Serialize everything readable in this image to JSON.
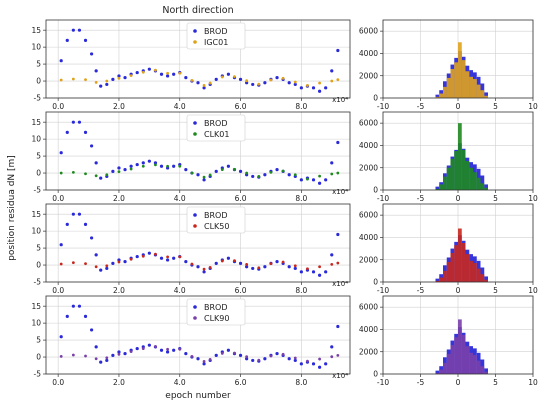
{
  "figure": {
    "title": "North direction",
    "ylabel": "position residua dN [m]",
    "xlabel": "epoch number",
    "x_exponent_label": "x10⁴"
  },
  "chart_data": [
    {
      "type": "scatter",
      "panel": "timeseries-1",
      "xlim": [
        -4000,
        96000
      ],
      "ylim": [
        -5,
        18
      ],
      "xticks": [
        0,
        20000,
        40000,
        60000,
        80000
      ],
      "xtick_labels": [
        "0.0",
        "2.0",
        "4.0",
        "6.0",
        "8.0"
      ],
      "yticks": [
        -5,
        0,
        5,
        10,
        15
      ],
      "grid": true,
      "legend": "top-center",
      "series": [
        {
          "name": "BROD",
          "color": "#2a2ad8",
          "x": [
            1000,
            3000,
            5000,
            7000,
            9000,
            11000,
            12500,
            14000,
            16000,
            18000,
            20000,
            22000,
            24000,
            26000,
            28000,
            30000,
            32000,
            34000,
            36000,
            38000,
            40000,
            42000,
            44000,
            46000,
            48000,
            50000,
            52000,
            54000,
            56000,
            58000,
            60000,
            62000,
            64000,
            66000,
            68000,
            70000,
            72000,
            74000,
            76000,
            78000,
            80000,
            82000,
            84000,
            86000,
            88000,
            90000,
            92000
          ],
          "y": [
            6,
            12,
            15,
            15,
            12,
            8,
            3,
            -1.5,
            -1,
            0.5,
            1.5,
            1,
            2,
            2.5,
            3,
            3.5,
            3,
            2,
            1.5,
            2,
            2.5,
            1,
            0,
            -0.5,
            -2,
            -1,
            0.5,
            1.5,
            2,
            1,
            0.5,
            -0.5,
            -1,
            -1.2,
            -0.5,
            0.5,
            1,
            0.5,
            -0.5,
            -1,
            -2,
            -1.5,
            -2,
            -3,
            -2,
            3,
            9
          ]
        },
        {
          "name": "IGC01",
          "color": "#e0a21c",
          "x": [
            1000,
            5000,
            9000,
            12500,
            16000,
            20000,
            24000,
            28000,
            32000,
            36000,
            40000,
            44000,
            48000,
            50000,
            54000,
            58000,
            62000,
            66000,
            70000,
            74000,
            78000,
            82000,
            86000,
            90000,
            92000
          ],
          "y": [
            0.3,
            0.6,
            0.4,
            -0.4,
            0,
            0.8,
            1.6,
            2.6,
            3.2,
            2.3,
            2.3,
            0.2,
            -1.3,
            -0.6,
            1.2,
            1.3,
            0.1,
            -0.9,
            0.3,
            0.8,
            -0.3,
            -1.3,
            -0.6,
            0,
            0.4
          ]
        }
      ]
    },
    {
      "type": "scatter",
      "panel": "timeseries-2",
      "xlim": [
        -4000,
        96000
      ],
      "ylim": [
        -5,
        18
      ],
      "xticks": [
        0,
        20000,
        40000,
        60000,
        80000
      ],
      "xtick_labels": [
        "0.0",
        "2.0",
        "4.0",
        "6.0",
        "8.0"
      ],
      "yticks": [
        -5,
        0,
        5,
        10,
        15
      ],
      "grid": true,
      "legend": "top-center",
      "series": [
        {
          "name": "BROD",
          "color": "#2a2ad8",
          "x": [
            1000,
            3000,
            5000,
            7000,
            9000,
            11000,
            12500,
            14000,
            16000,
            18000,
            20000,
            22000,
            24000,
            26000,
            28000,
            30000,
            32000,
            34000,
            36000,
            38000,
            40000,
            42000,
            44000,
            46000,
            48000,
            50000,
            52000,
            54000,
            56000,
            58000,
            60000,
            62000,
            64000,
            66000,
            68000,
            70000,
            72000,
            74000,
            76000,
            78000,
            80000,
            82000,
            84000,
            86000,
            88000,
            90000,
            92000
          ],
          "y": [
            6,
            12,
            15,
            15,
            12,
            8,
            3,
            -1.5,
            -1,
            0.5,
            1.5,
            1,
            2,
            2.5,
            3,
            3.5,
            3,
            2,
            1.5,
            2,
            2.5,
            1,
            0,
            -0.5,
            -2,
            -1,
            0.5,
            1.5,
            2,
            1,
            0.5,
            -0.5,
            -1,
            -1.2,
            -0.5,
            0.5,
            1,
            0.5,
            -0.5,
            -1,
            -2,
            -1.5,
            -2,
            -3,
            -2,
            3,
            9
          ]
        },
        {
          "name": "CLK01",
          "color": "#1f8a1f",
          "x": [
            1000,
            5000,
            9000,
            12500,
            16000,
            20000,
            24000,
            28000,
            32000,
            36000,
            40000,
            44000,
            48000,
            50000,
            54000,
            58000,
            62000,
            66000,
            70000,
            74000,
            78000,
            82000,
            86000,
            90000,
            92000
          ],
          "y": [
            0,
            0.2,
            -0.2,
            -0.8,
            -0.5,
            0.4,
            1.2,
            2,
            2.4,
            2,
            2,
            0,
            -1.2,
            -0.6,
            1,
            1.1,
            0,
            -1,
            0.2,
            0.6,
            -0.5,
            -1.8,
            -0.9,
            -0.3,
            0
          ]
        }
      ]
    },
    {
      "type": "scatter",
      "panel": "timeseries-3",
      "xlim": [
        -4000,
        96000
      ],
      "ylim": [
        -5,
        18
      ],
      "xticks": [
        0,
        20000,
        40000,
        60000,
        80000
      ],
      "xtick_labels": [
        "0.0",
        "2.0",
        "4.0",
        "6.0",
        "8.0"
      ],
      "yticks": [
        -5,
        0,
        5,
        10,
        15
      ],
      "grid": true,
      "legend": "top-center",
      "series": [
        {
          "name": "BROD",
          "color": "#2a2ad8",
          "x": [
            1000,
            3000,
            5000,
            7000,
            9000,
            11000,
            12500,
            14000,
            16000,
            18000,
            20000,
            22000,
            24000,
            26000,
            28000,
            30000,
            32000,
            34000,
            36000,
            38000,
            40000,
            42000,
            44000,
            46000,
            48000,
            50000,
            52000,
            54000,
            56000,
            58000,
            60000,
            62000,
            64000,
            66000,
            68000,
            70000,
            72000,
            74000,
            76000,
            78000,
            80000,
            82000,
            84000,
            86000,
            88000,
            90000,
            92000
          ],
          "y": [
            6,
            12,
            15,
            15,
            12,
            8,
            3,
            -1.5,
            -1,
            0.5,
            1.5,
            1,
            2,
            2.5,
            3,
            3.5,
            3,
            2,
            1.5,
            2,
            2.5,
            1,
            0,
            -0.5,
            -2,
            -1,
            0.5,
            1.5,
            2,
            1,
            0.5,
            -0.5,
            -1,
            -1.2,
            -0.5,
            0.5,
            1,
            0.5,
            -0.5,
            -1,
            -2,
            -1.5,
            -2,
            -3,
            -2,
            3,
            9
          ]
        },
        {
          "name": "CLK50",
          "color": "#c8281e",
          "x": [
            1000,
            5000,
            9000,
            12500,
            16000,
            20000,
            24000,
            28000,
            32000,
            36000,
            40000,
            44000,
            48000,
            50000,
            54000,
            58000,
            62000,
            66000,
            70000,
            74000,
            78000,
            82000,
            86000,
            90000,
            92000
          ],
          "y": [
            0.3,
            0.7,
            0.4,
            -0.5,
            -0.2,
            0.9,
            1.7,
            2.6,
            3.2,
            2.4,
            2.4,
            0.3,
            -1.2,
            -0.7,
            1.2,
            1.3,
            0.2,
            -0.8,
            0.4,
            0.9,
            -0.2,
            -1.1,
            -0.5,
            0.2,
            0.6
          ]
        }
      ]
    },
    {
      "type": "scatter",
      "panel": "timeseries-4",
      "xlim": [
        -4000,
        96000
      ],
      "ylim": [
        -5,
        18
      ],
      "xticks": [
        0,
        20000,
        40000,
        60000,
        80000
      ],
      "xtick_labels": [
        "0.0",
        "2.0",
        "4.0",
        "6.0",
        "8.0"
      ],
      "yticks": [
        -5,
        0,
        5,
        10,
        15
      ],
      "grid": true,
      "legend": "top-center",
      "series": [
        {
          "name": "BROD",
          "color": "#2a2ad8",
          "x": [
            1000,
            3000,
            5000,
            7000,
            9000,
            11000,
            12500,
            14000,
            16000,
            18000,
            20000,
            22000,
            24000,
            26000,
            28000,
            30000,
            32000,
            34000,
            36000,
            38000,
            40000,
            42000,
            44000,
            46000,
            48000,
            50000,
            52000,
            54000,
            56000,
            58000,
            60000,
            62000,
            64000,
            66000,
            68000,
            70000,
            72000,
            74000,
            76000,
            78000,
            80000,
            82000,
            84000,
            86000,
            88000,
            90000,
            92000
          ],
          "y": [
            6,
            12,
            15,
            15,
            12,
            8,
            3,
            -1.5,
            -1,
            0.5,
            1.5,
            1,
            2,
            2.5,
            3,
            3.5,
            3,
            2,
            1.5,
            2,
            2.5,
            1,
            0,
            -0.5,
            -2,
            -1,
            0.5,
            1.5,
            2,
            1,
            0.5,
            -0.5,
            -1,
            -1.2,
            -0.5,
            0.5,
            1,
            0.5,
            -0.5,
            -1,
            -2,
            -1.5,
            -2,
            -3,
            -2,
            3,
            9
          ]
        },
        {
          "name": "CLK90",
          "color": "#7a3fa8",
          "x": [
            1000,
            5000,
            9000,
            12500,
            16000,
            20000,
            24000,
            28000,
            32000,
            36000,
            40000,
            44000,
            48000,
            50000,
            54000,
            58000,
            62000,
            66000,
            70000,
            74000,
            78000,
            82000,
            86000,
            90000,
            92000
          ],
          "y": [
            0.2,
            0.6,
            0.3,
            -0.5,
            -0.2,
            0.8,
            1.6,
            2.5,
            3.1,
            2.3,
            2.3,
            0.2,
            -1.3,
            -0.7,
            1.1,
            1.2,
            0.1,
            -0.9,
            0.3,
            0.8,
            -0.3,
            -1.2,
            -0.6,
            0.1,
            0.5
          ]
        }
      ]
    },
    {
      "type": "bar",
      "panel": "histogram-1",
      "xlim": [
        -10,
        10
      ],
      "ylim": [
        0,
        7000
      ],
      "xticks": [
        -10,
        -5,
        0,
        5,
        10
      ],
      "yticks": [
        0,
        2000,
        4000,
        6000
      ],
      "grid": true,
      "bin_centers": [
        -2.75,
        -2.25,
        -1.75,
        -1.25,
        -0.75,
        -0.25,
        0.25,
        0.75,
        1.25,
        1.75,
        2.25,
        2.75,
        3.25,
        3.75
      ],
      "series": [
        {
          "name": "BROD",
          "color": "#2a2ad8",
          "values": [
            300,
            700,
            1500,
            2200,
            3000,
            3600,
            4200,
            3700,
            2900,
            2500,
            2300,
            1900,
            1300,
            500
          ]
        },
        {
          "name": "IGC01",
          "color": "#e0a21c",
          "values": [
            100,
            400,
            1000,
            1800,
            2600,
            3200,
            5000,
            3400,
            2400,
            1900,
            1700,
            1200,
            700,
            200
          ]
        }
      ]
    },
    {
      "type": "bar",
      "panel": "histogram-2",
      "xlim": [
        -10,
        10
      ],
      "ylim": [
        0,
        7000
      ],
      "xticks": [
        -10,
        -5,
        0,
        5,
        10
      ],
      "yticks": [
        0,
        2000,
        4000,
        6000
      ],
      "grid": true,
      "bin_centers": [
        -2.75,
        -2.25,
        -1.75,
        -1.25,
        -0.75,
        -0.25,
        0.25,
        0.75,
        1.25,
        1.75,
        2.25,
        2.75,
        3.25,
        3.75
      ],
      "series": [
        {
          "name": "BROD",
          "color": "#2a2ad8",
          "values": [
            300,
            700,
            1500,
            2200,
            3000,
            3600,
            4200,
            3700,
            2900,
            2500,
            2300,
            1900,
            1300,
            500
          ]
        },
        {
          "name": "CLK01",
          "color": "#1f8a1f",
          "values": [
            100,
            500,
            1200,
            2000,
            2800,
            3500,
            6000,
            3600,
            2600,
            2000,
            1600,
            1100,
            600,
            200
          ]
        }
      ]
    },
    {
      "type": "bar",
      "panel": "histogram-3",
      "xlim": [
        -10,
        10
      ],
      "ylim": [
        0,
        7000
      ],
      "xticks": [
        -10,
        -5,
        0,
        5,
        10
      ],
      "yticks": [
        0,
        2000,
        4000,
        6000
      ],
      "grid": true,
      "bin_centers": [
        -2.75,
        -2.25,
        -1.75,
        -1.25,
        -0.75,
        -0.25,
        0.25,
        0.75,
        1.25,
        1.75,
        2.25,
        2.75,
        3.25,
        3.75
      ],
      "series": [
        {
          "name": "BROD",
          "color": "#2a2ad8",
          "values": [
            300,
            700,
            1500,
            2200,
            3000,
            3600,
            4200,
            3700,
            2900,
            2500,
            2300,
            1900,
            1300,
            500
          ]
        },
        {
          "name": "CLK50",
          "color": "#c8281e",
          "values": [
            100,
            400,
            1000,
            1800,
            2600,
            3300,
            4800,
            3500,
            2500,
            1900,
            1700,
            1200,
            700,
            200
          ]
        }
      ]
    },
    {
      "type": "bar",
      "panel": "histogram-4",
      "xlim": [
        -10,
        10
      ],
      "ylim": [
        0,
        7000
      ],
      "xticks": [
        -10,
        -5,
        0,
        5,
        10
      ],
      "yticks": [
        0,
        2000,
        4000,
        6000
      ],
      "grid": true,
      "bin_centers": [
        -2.75,
        -2.25,
        -1.75,
        -1.25,
        -0.75,
        -0.25,
        0.25,
        0.75,
        1.25,
        1.75,
        2.25,
        2.75,
        3.25,
        3.75
      ],
      "series": [
        {
          "name": "BROD",
          "color": "#2a2ad8",
          "values": [
            300,
            700,
            1500,
            2200,
            3000,
            3600,
            4200,
            3700,
            2900,
            2500,
            2300,
            1900,
            1300,
            500
          ]
        },
        {
          "name": "CLK90",
          "color": "#7a3fa8",
          "values": [
            100,
            400,
            1000,
            1800,
            2600,
            3300,
            4900,
            3500,
            2500,
            1900,
            1700,
            1200,
            700,
            200
          ]
        }
      ]
    }
  ]
}
